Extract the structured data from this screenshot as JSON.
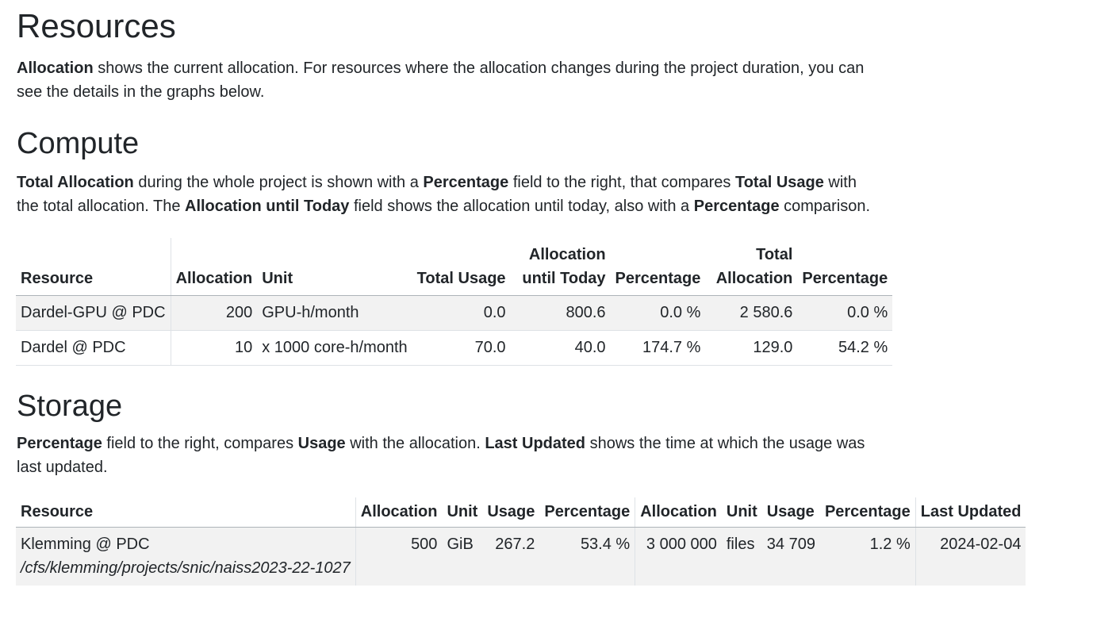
{
  "resources": {
    "title": "Resources",
    "intro_bold": "Allocation",
    "intro_rest": " shows the current allocation. For resources where the allocation changes during the project duration, you can see the details in the graphs below."
  },
  "compute": {
    "title": "Compute",
    "desc": [
      {
        "b": "Total Allocation"
      },
      {
        "t": " during the whole project is shown with a "
      },
      {
        "b": "Percentage"
      },
      {
        "t": " field to the right, that compares "
      },
      {
        "b": "Total Usage"
      },
      {
        "t": " with the total allocation. The "
      },
      {
        "b": "Allocation until Today"
      },
      {
        "t": " field shows the allocation until today, also with a "
      },
      {
        "b": "Percentage"
      },
      {
        "t": " comparison."
      }
    ],
    "headers": {
      "resource": "Resource",
      "allocation": "Allocation",
      "unit": "Unit",
      "total_usage": "Total Usage",
      "allocation_until_today": "Allocation until Today",
      "percentage1": "Percentage",
      "total_allocation": "Total Allocation",
      "percentage2": "Percentage"
    },
    "rows": [
      {
        "resource": "Dardel-GPU @ PDC",
        "allocation": "200",
        "unit": "GPU-h/month",
        "total_usage": "0.0",
        "allocation_until_today": "800.6",
        "percentage1": "0.0 %",
        "total_allocation": "2 580.6",
        "percentage2": "0.0 %"
      },
      {
        "resource": "Dardel @ PDC",
        "allocation": "10",
        "unit": "x 1000 core-h/month",
        "total_usage": "70.0",
        "allocation_until_today": "40.0",
        "percentage1": "174.7 %",
        "total_allocation": "129.0",
        "percentage2": "54.2 %"
      }
    ]
  },
  "storage": {
    "title": "Storage",
    "desc": [
      {
        "b": "Percentage"
      },
      {
        "t": " field to the right, compares "
      },
      {
        "b": "Usage"
      },
      {
        "t": " with the allocation. "
      },
      {
        "b": "Last Updated"
      },
      {
        "t": " shows the time at which the usage was last updated."
      }
    ],
    "headers": {
      "resource": "Resource",
      "allocation1": "Allocation",
      "unit1": "Unit",
      "usage1": "Usage",
      "percentage1": "Percentage",
      "allocation2": "Allocation",
      "unit2": "Unit",
      "usage2": "Usage",
      "percentage2": "Percentage",
      "last_updated": "Last Updated"
    },
    "rows": [
      {
        "resource": "Klemming @ PDC",
        "path": "/cfs/klemming/projects/snic/naiss2023-22-1027",
        "allocation1": "500",
        "unit1": "GiB",
        "usage1": "267.2",
        "percentage1": "53.4 %",
        "allocation2": "3 000 000",
        "unit2": "files",
        "usage2": "34 709",
        "percentage2": "1.2 %",
        "last_updated": "2024-02-04"
      }
    ]
  }
}
